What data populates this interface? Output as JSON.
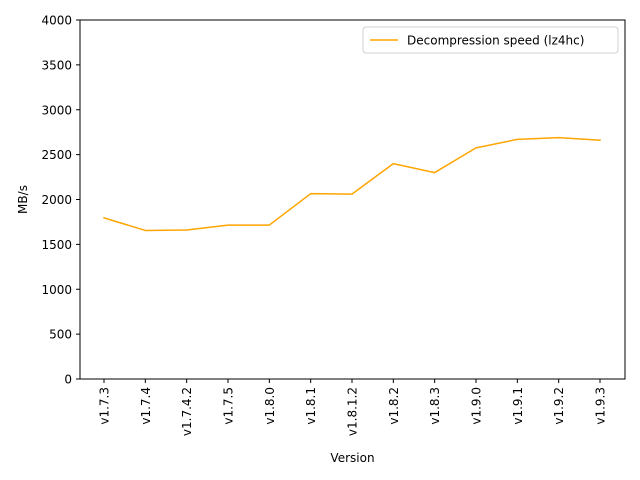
{
  "chart_data": {
    "type": "line",
    "title": "",
    "xlabel": "Version",
    "ylabel": "MB/s",
    "ylim": [
      0,
      4000
    ],
    "yticks": [
      0,
      500,
      1000,
      1500,
      2000,
      2500,
      3000,
      3500,
      4000
    ],
    "grid": false,
    "legend_position": "top-right",
    "categories": [
      "v1.7.3",
      "v1.7.4",
      "v1.7.4.2",
      "v1.7.5",
      "v1.8.0",
      "v1.8.1",
      "v1.8.1.2",
      "v1.8.2",
      "v1.8.3",
      "v1.9.0",
      "v1.9.1",
      "v1.9.2",
      "v1.9.3"
    ],
    "series": [
      {
        "name": "Decompression speed (lz4hc)",
        "color": "#ffa500",
        "values": [
          1795,
          1655,
          1660,
          1715,
          1715,
          2065,
          2060,
          2400,
          2300,
          2575,
          2670,
          2690,
          2660
        ]
      }
    ]
  }
}
